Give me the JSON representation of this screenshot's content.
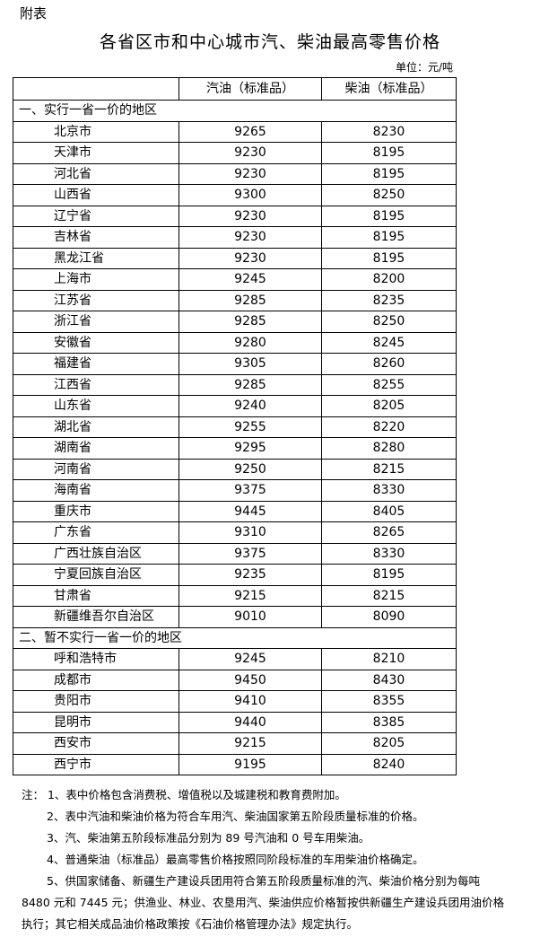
{
  "appendix_label": "附表",
  "title": "各省区市和中心城市汽、柴油最高零售价格",
  "unit": "单位：元/吨",
  "table": {
    "headers": [
      "",
      "汽油（标准品）",
      "柴油（标准品）"
    ],
    "sections": [
      {
        "label": "一、实行一省一价的地区",
        "rows": [
          {
            "name": "北京市",
            "gasoline": "9265",
            "diesel": "8230"
          },
          {
            "name": "天津市",
            "gasoline": "9230",
            "diesel": "8195"
          },
          {
            "name": "河北省",
            "gasoline": "9230",
            "diesel": "8195"
          },
          {
            "name": "山西省",
            "gasoline": "9300",
            "diesel": "8250"
          },
          {
            "name": "辽宁省",
            "gasoline": "9230",
            "diesel": "8195"
          },
          {
            "name": "吉林省",
            "gasoline": "9230",
            "diesel": "8195"
          },
          {
            "name": "黑龙江省",
            "gasoline": "9230",
            "diesel": "8195"
          },
          {
            "name": "上海市",
            "gasoline": "9245",
            "diesel": "8200"
          },
          {
            "name": "江苏省",
            "gasoline": "9285",
            "diesel": "8235"
          },
          {
            "name": "浙江省",
            "gasoline": "9285",
            "diesel": "8250"
          },
          {
            "name": "安徽省",
            "gasoline": "9280",
            "diesel": "8245"
          },
          {
            "name": "福建省",
            "gasoline": "9305",
            "diesel": "8260"
          },
          {
            "name": "江西省",
            "gasoline": "9285",
            "diesel": "8255"
          },
          {
            "name": "山东省",
            "gasoline": "9240",
            "diesel": "8205"
          },
          {
            "name": "湖北省",
            "gasoline": "9255",
            "diesel": "8220"
          },
          {
            "name": "湖南省",
            "gasoline": "9295",
            "diesel": "8280"
          },
          {
            "name": "河南省",
            "gasoline": "9250",
            "diesel": "8215"
          },
          {
            "name": "海南省",
            "gasoline": "9375",
            "diesel": "8330"
          },
          {
            "name": "重庆市",
            "gasoline": "9445",
            "diesel": "8405"
          },
          {
            "name": "广东省",
            "gasoline": "9310",
            "diesel": "8265"
          },
          {
            "name": "广西壮族自治区",
            "gasoline": "9375",
            "diesel": "8330"
          },
          {
            "name": "宁夏回族自治区",
            "gasoline": "9235",
            "diesel": "8195"
          },
          {
            "name": "甘肃省",
            "gasoline": "9215",
            "diesel": "8215"
          },
          {
            "name": "新疆维吾尔自治区",
            "gasoline": "9010",
            "diesel": "8090"
          }
        ]
      },
      {
        "label": "二、暂不实行一省一价的地区",
        "rows": [
          {
            "name": "呼和浩特市",
            "gasoline": "9245",
            "diesel": "8210"
          },
          {
            "name": "成都市",
            "gasoline": "9450",
            "diesel": "8430"
          },
          {
            "name": "贵阳市",
            "gasoline": "9410",
            "diesel": "8355"
          },
          {
            "name": "昆明市",
            "gasoline": "9440",
            "diesel": "8385"
          },
          {
            "name": "西安市",
            "gasoline": "9215",
            "diesel": "8205"
          },
          {
            "name": "西宁市",
            "gasoline": "9195",
            "diesel": "8240"
          }
        ]
      }
    ]
  },
  "notes": [
    {
      "text": "注：  1、表中价格包含消费税、增值税以及城建税和教育费附加。",
      "indent": false
    },
    {
      "text": "2、表中汽油和柴油价格为符合车用汽、柴油国家第五阶段质量标准的价格。",
      "indent": true
    },
    {
      "text": "3、汽、柴油第五阶段标准品分别为 89 号汽油和 0 号车用柴油。",
      "indent": true
    },
    {
      "text": "4、普通柴油（标准品）最高零售价格按照同阶段标准的车用柴油价格确定。",
      "indent": true
    },
    {
      "text": "5、供国家储备、新疆生产建设兵团用符合第五阶段质量标准的汽、柴油价格分别为每吨",
      "indent": true
    },
    {
      "text": "8480 元和 7445 元；供渔业、林业、农垦用汽、柴油供应价格暂按供新疆生产建设兵团用油价格",
      "indent": false
    },
    {
      "text": "执行；其它相关成品油价格政策按《石油价格管理办法》规定执行。",
      "indent": false
    }
  ]
}
